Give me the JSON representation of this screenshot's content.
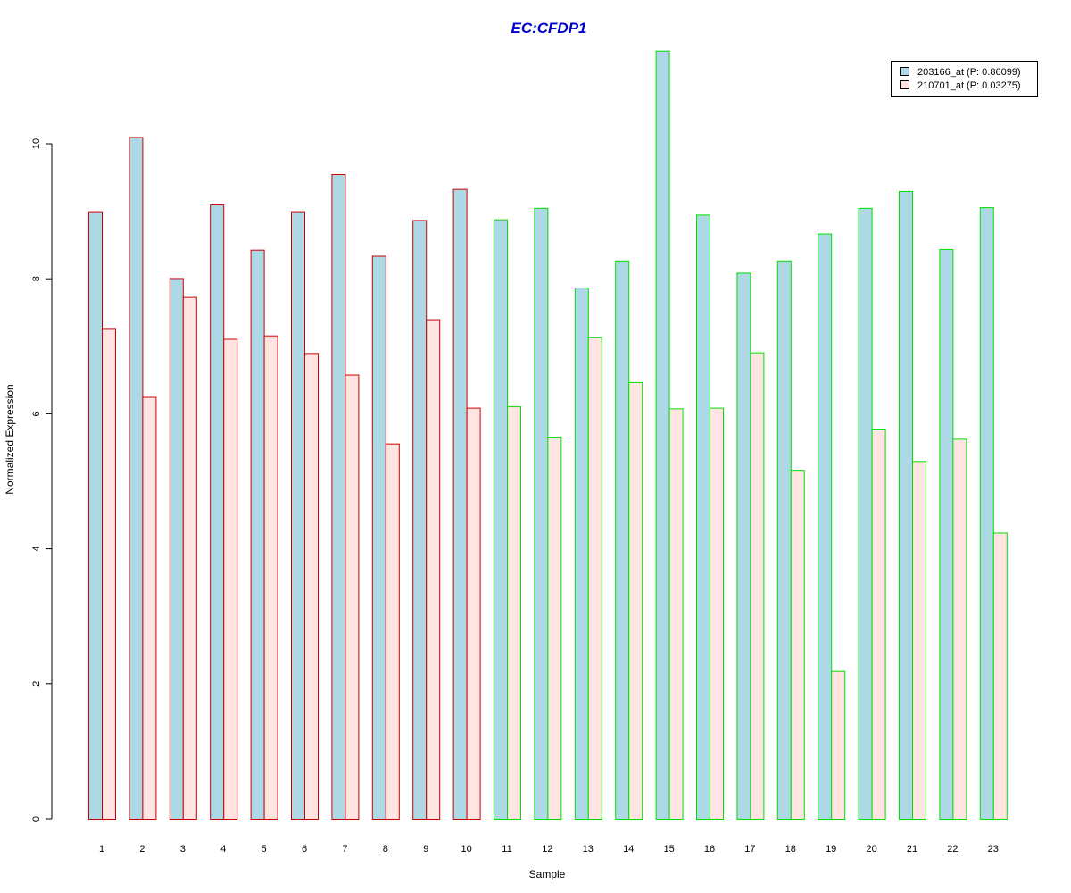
{
  "chart_data": {
    "type": "bar",
    "title": "EC:CFDP1",
    "xlabel": "Sample",
    "ylabel": "Normalized Expression",
    "ylim": [
      0,
      11.4
    ],
    "yticks": [
      0,
      2,
      4,
      6,
      8,
      10
    ],
    "yticks_labels": [
      "0",
      "2",
      "4",
      "6",
      "8",
      "10"
    ],
    "categories": [
      "1",
      "2",
      "3",
      "4",
      "5",
      "6",
      "7",
      "8",
      "9",
      "10",
      "11",
      "12",
      "13",
      "14",
      "15",
      "16",
      "17",
      "18",
      "19",
      "20",
      "21",
      "22",
      "23"
    ],
    "series": [
      {
        "name": "203166_at (P: 0.86099)",
        "fill": "#add8e6",
        "values": [
          9.0,
          10.1,
          8.01,
          9.1,
          8.43,
          9.0,
          9.55,
          8.34,
          8.87,
          9.33,
          8.88,
          9.05,
          7.87,
          8.27,
          11.38,
          8.95,
          8.09,
          8.27,
          8.67,
          9.05,
          9.3,
          8.44,
          9.06
        ]
      },
      {
        "name": "210701_at (P: 0.03275)",
        "fill": "#ffe4e1",
        "values": [
          7.27,
          6.25,
          7.73,
          7.11,
          7.16,
          6.9,
          6.58,
          5.56,
          7.4,
          6.09,
          6.11,
          5.66,
          7.14,
          6.47,
          6.08,
          6.09,
          6.91,
          5.17,
          2.2,
          5.78,
          5.3,
          5.63,
          4.24
        ]
      }
    ],
    "border_colors": [
      "#cc0000",
      "#cc0000",
      "#cc0000",
      "#cc0000",
      "#cc0000",
      "#cc0000",
      "#cc0000",
      "#cc0000",
      "#cc0000",
      "#cc0000",
      "#00e000",
      "#00e000",
      "#00e000",
      "#00e000",
      "#00e000",
      "#00e000",
      "#00e000",
      "#00e000",
      "#00e000",
      "#00e000",
      "#00e000",
      "#00e000",
      "#00e000"
    ],
    "legend_position": "top-right",
    "grid": false
  },
  "colors": {
    "title": "#0000cc",
    "axis": "#000000"
  }
}
